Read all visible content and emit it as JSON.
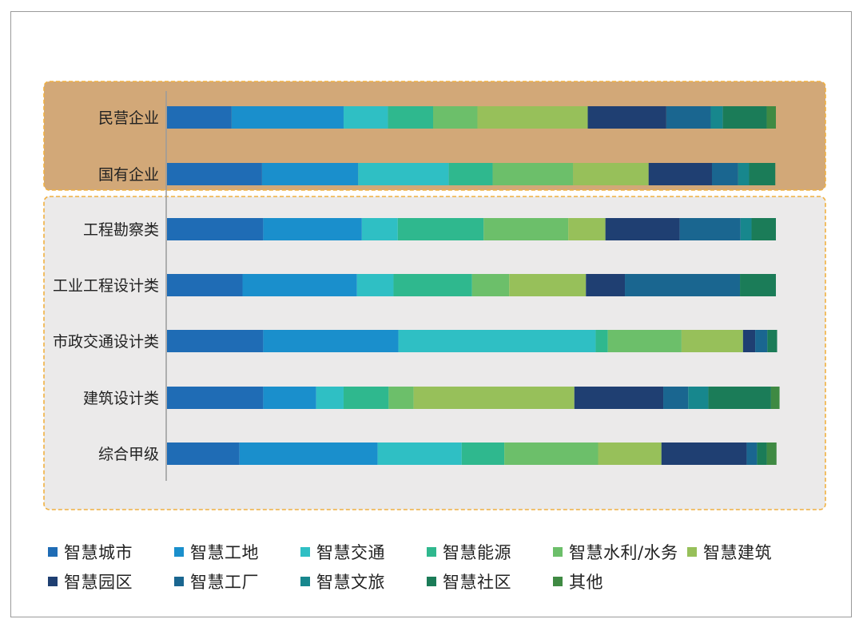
{
  "chart_data": {
    "type": "bar",
    "orientation": "horizontal",
    "stacked": true,
    "normalized": true,
    "categories": [
      "民营企业",
      "国有企业",
      "工程勘察类",
      "工业工程设计类",
      "市政交通设计类",
      "建筑设计类",
      "综合甲级"
    ],
    "groups": [
      {
        "categories": [
          "民营企业",
          "国有企业"
        ],
        "fill": "#d2a878",
        "border": "#f0b040"
      },
      {
        "categories": [
          "工程勘察类",
          "工业工程设计类",
          "市政交通设计类",
          "建筑设计类",
          "综合甲级"
        ],
        "fill": "#ebeaea",
        "border": "#f0b040"
      }
    ],
    "series": [
      {
        "name": "智慧城市",
        "color": "#1f6cb5",
        "values": [
          10.6,
          15.6,
          15.8,
          12.4,
          15.8,
          15.8,
          11.9
        ]
      },
      {
        "name": "智慧工地",
        "color": "#1a8fcc",
        "values": [
          18.4,
          15.8,
          16.2,
          18.8,
          22.2,
          8.7,
          22.7
        ]
      },
      {
        "name": "智慧交通",
        "color": "#2fbfc4",
        "values": [
          7.3,
          14.9,
          5.9,
          6.0,
          32.4,
          4.5,
          13.8
        ]
      },
      {
        "name": "智慧能源",
        "color": "#2fb88e",
        "values": [
          7.4,
          7.2,
          14.1,
          12.9,
          2.0,
          7.4,
          7.0
        ]
      },
      {
        "name": "智慧水利/水务",
        "color": "#6cbf6a",
        "values": [
          7.3,
          13.2,
          13.9,
          6.1,
          12.1,
          4.1,
          15.4
        ]
      },
      {
        "name": "智慧建筑",
        "color": "#97c05a",
        "values": [
          18.1,
          12.4,
          6.1,
          12.6,
          10.1,
          26.4,
          10.4
        ]
      },
      {
        "name": "智慧园区",
        "color": "#1f3f72",
        "values": [
          12.9,
          10.4,
          12.2,
          6.4,
          2.0,
          14.6,
          14.0
        ]
      },
      {
        "name": "智慧工厂",
        "color": "#1a6690",
        "values": [
          7.3,
          4.3,
          10.0,
          18.9,
          2.0,
          4.1,
          1.7
        ]
      },
      {
        "name": "智慧文旅",
        "color": "#17878d",
        "values": [
          2.0,
          1.8,
          1.8,
          0.0,
          0.0,
          3.3,
          0.0
        ]
      },
      {
        "name": "智慧社区",
        "color": "#1b7c58",
        "values": [
          7.2,
          4.3,
          4.0,
          5.9,
          1.6,
          10.3,
          1.6
        ]
      },
      {
        "name": "其他",
        "color": "#3f8a43",
        "values": [
          1.5,
          0.0,
          0.0,
          0.0,
          0.0,
          1.4,
          1.6
        ]
      }
    ],
    "xlim": [
      0,
      100
    ],
    "grid": false,
    "legend": "bottom"
  }
}
